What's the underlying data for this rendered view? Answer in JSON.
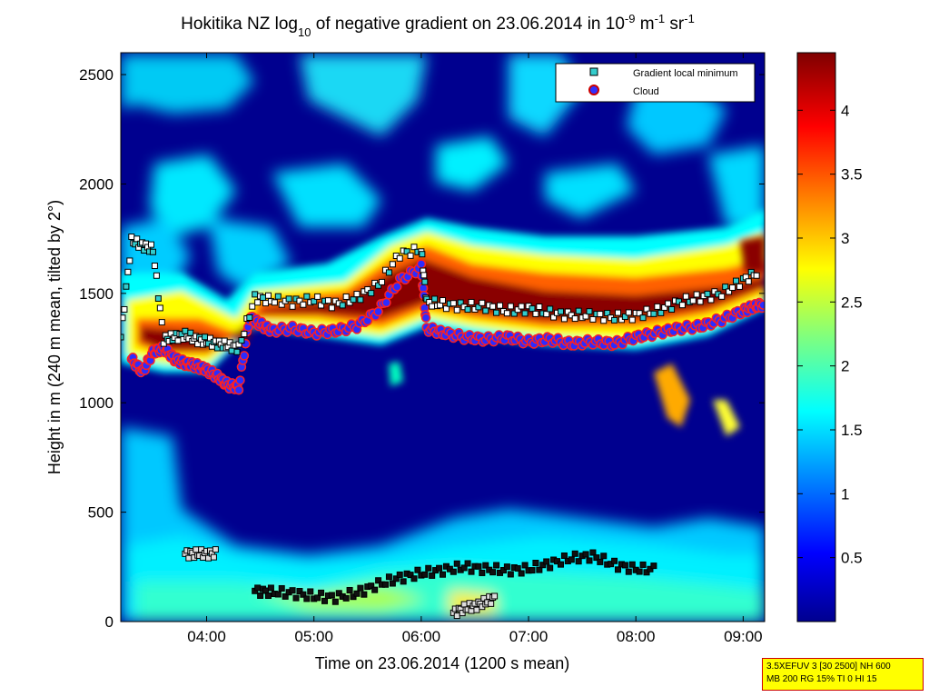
{
  "chart_data": {
    "type": "heatmap",
    "title": {
      "main": "Hokitika NZ log",
      "sub1": "10",
      "mid": " of negative gradient on 23.06.2014 in 10",
      "sup1": "-9",
      "u1": " m",
      "sup2": "-1",
      "u2": " sr",
      "sup3": "-1"
    },
    "xlabel": "Time on 23.06.2014 (1200 s mean)",
    "ylabel": "Height in m (240 m mean, tilted by 2°)",
    "xlim": [
      3.2,
      9.2
    ],
    "ylim": [
      0,
      2600
    ],
    "xticks": [
      {
        "v": 4,
        "label": "04:00"
      },
      {
        "v": 5,
        "label": "05:00"
      },
      {
        "v": 6,
        "label": "06:00"
      },
      {
        "v": 7,
        "label": "07:00"
      },
      {
        "v": 8,
        "label": "08:00"
      },
      {
        "v": 9,
        "label": "09:00"
      }
    ],
    "yticks": [
      0,
      500,
      1000,
      1500,
      2000,
      2500
    ],
    "colorbar": {
      "range": [
        0,
        4.45
      ],
      "ticks": [
        "0.5",
        "1",
        "1.5",
        "2",
        "2.5",
        "3",
        "3.5",
        "4"
      ],
      "tick_values": [
        0.5,
        1,
        1.5,
        2,
        2.5,
        3,
        3.5,
        4
      ],
      "colormap": "jet"
    },
    "legend": {
      "position": "top-right",
      "items": [
        {
          "label": "Gradient local minimum",
          "marker": "square",
          "color": "#33cccc"
        },
        {
          "label": "Cloud",
          "marker": "circle",
          "color": "#cc0000"
        }
      ]
    },
    "cloud_base": {
      "x": [
        3.3,
        3.4,
        3.5,
        3.6,
        3.7,
        3.8,
        3.9,
        4.0,
        4.1,
        4.2,
        4.3,
        4.4,
        4.5,
        4.6,
        4.8,
        5.0,
        5.2,
        5.4,
        5.6,
        5.8,
        6.0,
        6.05,
        6.2,
        6.4,
        6.6,
        6.8,
        7.0,
        7.2,
        7.4,
        7.6,
        7.8,
        8.0,
        8.2,
        8.4,
        8.6,
        8.8,
        9.0,
        9.1,
        9.2
      ],
      "y": [
        1200,
        1140,
        1230,
        1250,
        1200,
        1180,
        1170,
        1150,
        1120,
        1080,
        1070,
        1390,
        1360,
        1330,
        1340,
        1320,
        1330,
        1350,
        1420,
        1560,
        1620,
        1340,
        1320,
        1300,
        1290,
        1300,
        1280,
        1290,
        1270,
        1280,
        1270,
        1300,
        1320,
        1340,
        1350,
        1380,
        1420,
        1440,
        1450
      ]
    },
    "gradient_local_minimum": {
      "upper_layer": {
        "x": [
          3.2,
          3.3,
          3.4,
          3.5,
          3.6,
          3.7,
          3.8,
          3.9,
          4.0,
          4.1,
          4.2,
          4.3,
          4.45,
          4.6,
          4.8,
          5.0,
          5.2,
          5.4,
          5.6,
          5.8,
          6.0,
          6.05,
          6.2,
          6.4,
          6.6,
          6.8,
          7.0,
          7.2,
          7.4,
          7.6,
          7.8,
          8.0,
          8.2,
          8.4,
          8.6,
          8.8,
          9.0,
          9.15
        ],
        "y": [
          1300,
          1740,
          1720,
          1700,
          1290,
          1300,
          1310,
          1290,
          1280,
          1270,
          1260,
          1250,
          1480,
          1470,
          1460,
          1470,
          1450,
          1480,
          1540,
          1680,
          1700,
          1460,
          1450,
          1440,
          1440,
          1420,
          1430,
          1410,
          1400,
          1400,
          1390,
          1400,
          1420,
          1460,
          1480,
          1500,
          1560,
          1600
        ]
      },
      "lower_layer": {
        "x": [
          4.45,
          4.6,
          4.8,
          5.0,
          5.2,
          5.4,
          5.6,
          5.8,
          6.0,
          6.2,
          6.4,
          6.6,
          6.8,
          7.0,
          7.2,
          7.4,
          7.6,
          7.8,
          8.0,
          8.2
        ],
        "y": [
          140,
          135,
          130,
          115,
          110,
          130,
          170,
          200,
          220,
          235,
          250,
          240,
          235,
          240,
          265,
          290,
          300,
          260,
          240,
          240
        ]
      },
      "short_layers": [
        {
          "x": [
            3.8,
            3.9,
            4.0,
            4.1
          ],
          "y": [
            310,
            310,
            310,
            310
          ]
        },
        {
          "x": [
            6.3,
            6.4,
            6.5,
            6.6,
            6.7
          ],
          "y": [
            40,
            60,
            70,
            90,
            110
          ]
        }
      ]
    }
  },
  "info_box": {
    "line1": "3.5XEFUV 3 [30 2500] NH 600",
    "line2": "MB 200 RG 15% TI 0 HI 15"
  }
}
